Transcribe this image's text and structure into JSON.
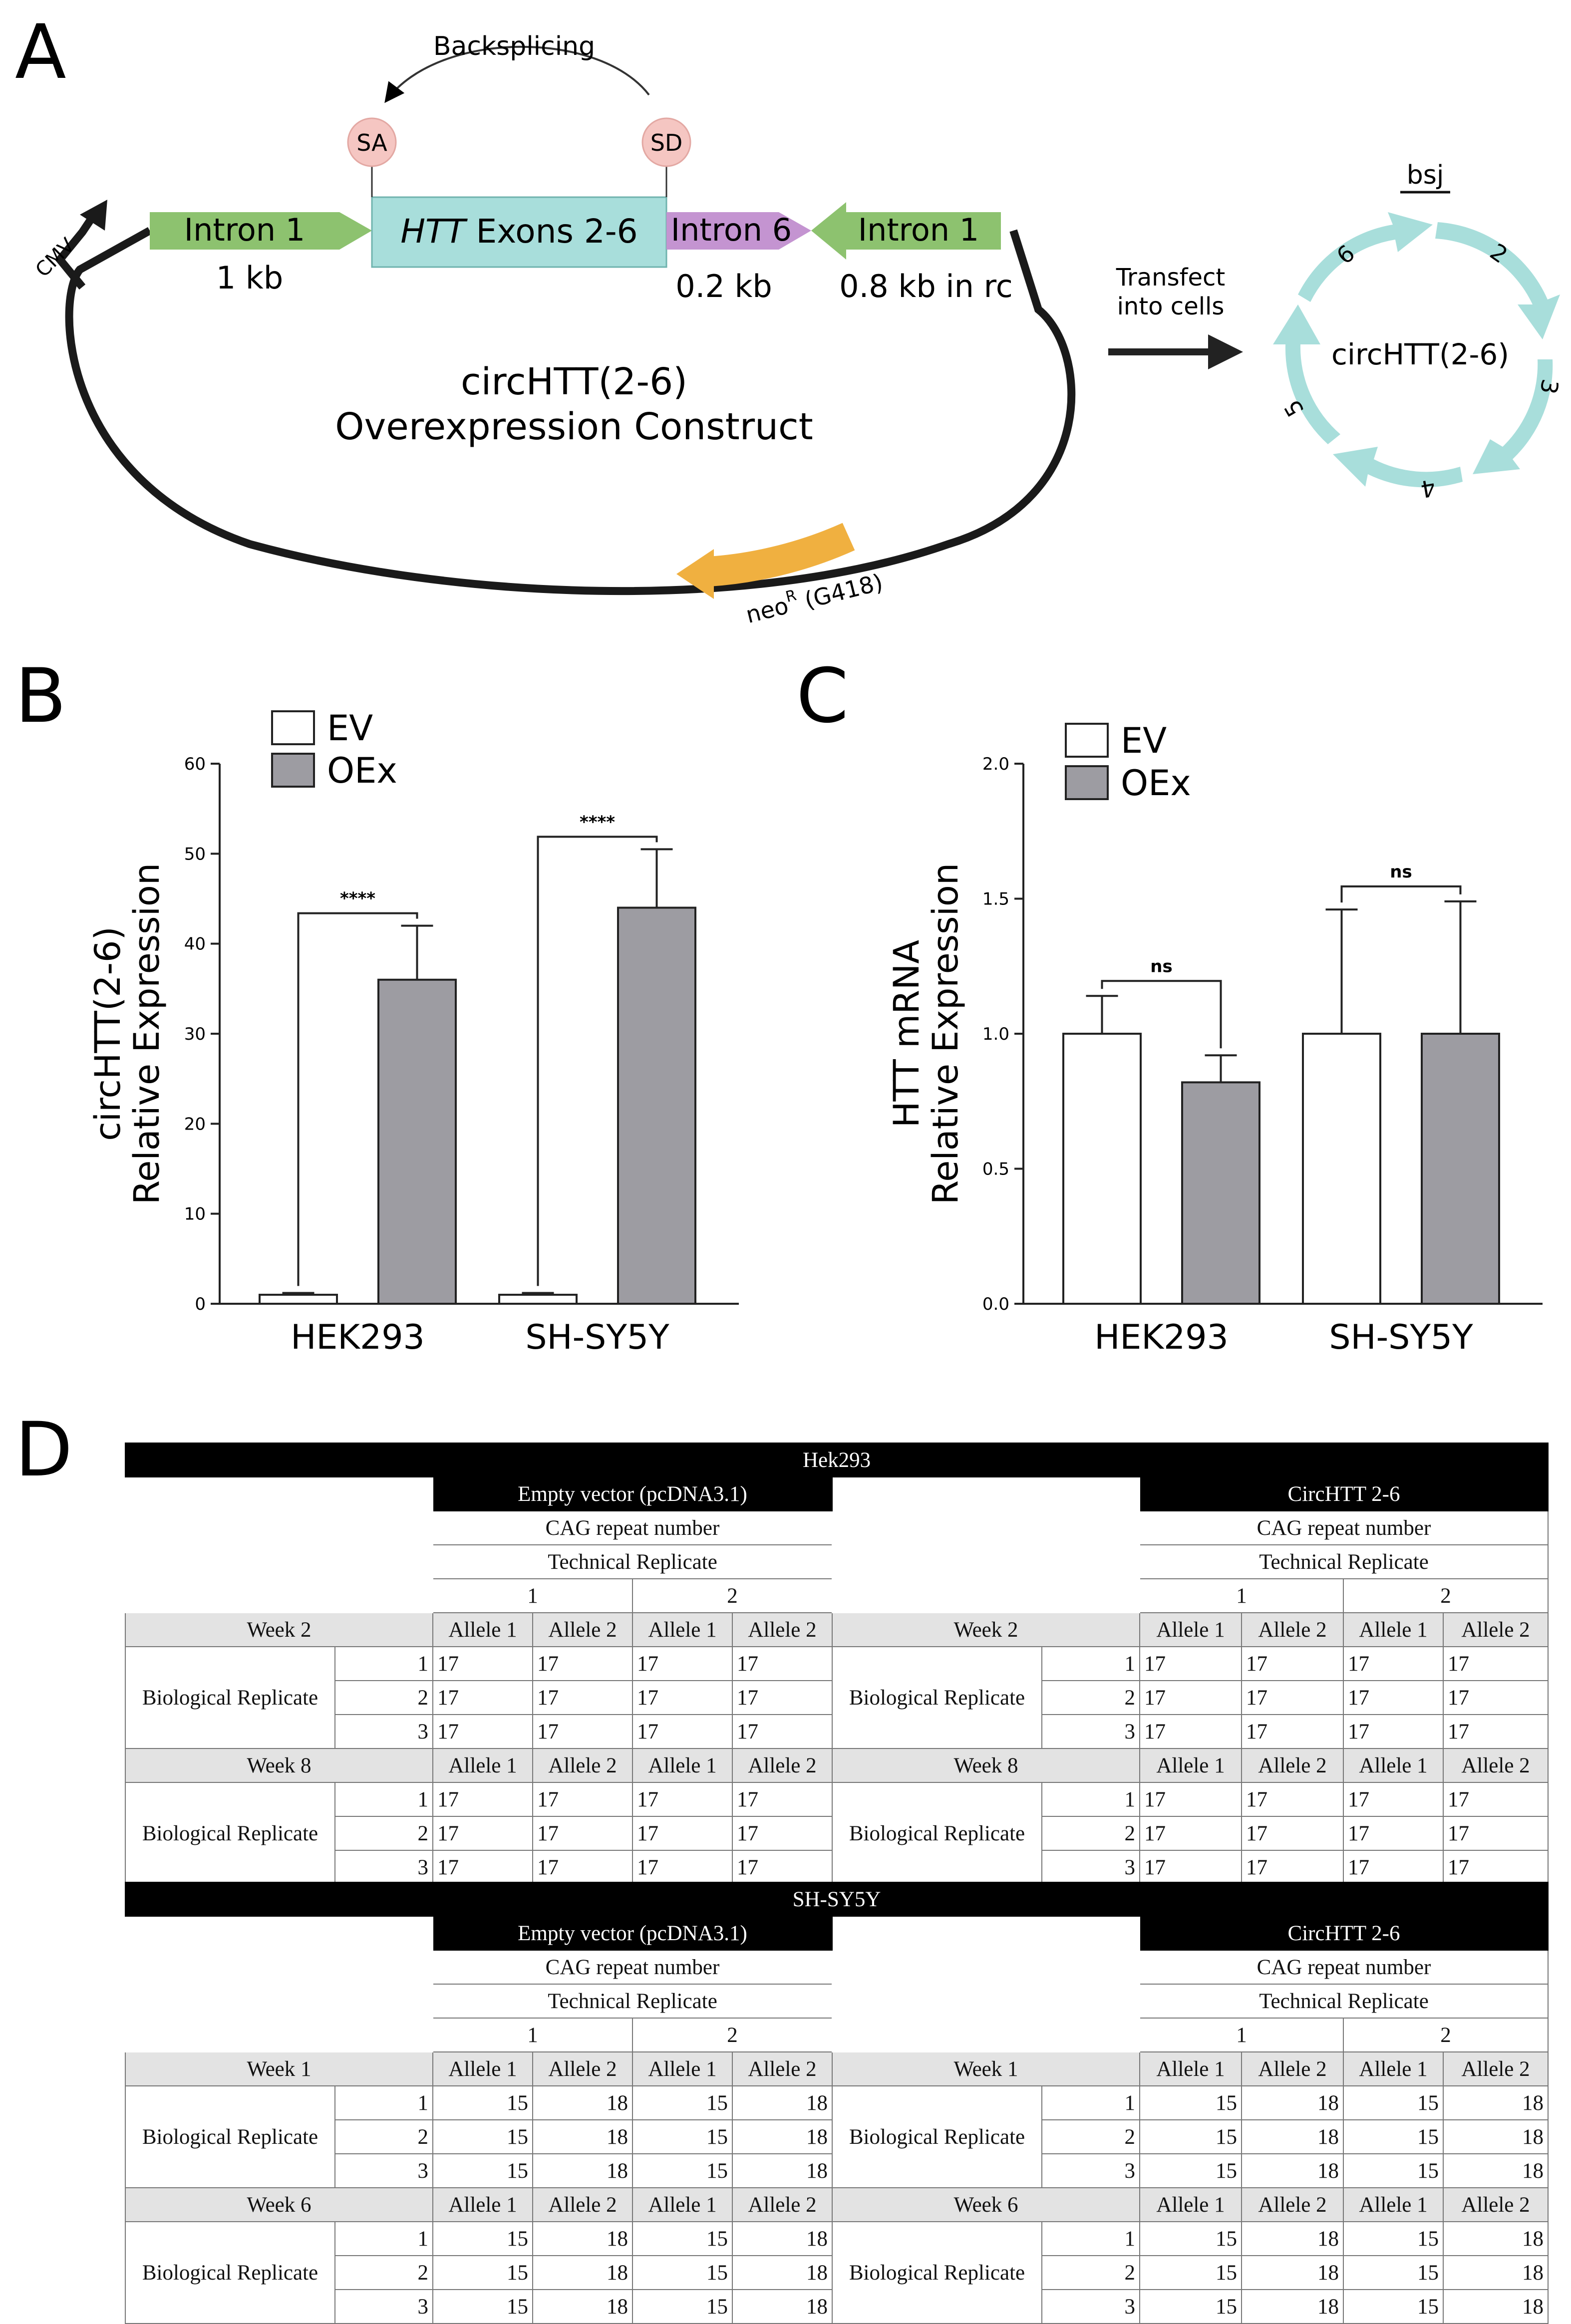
{
  "panel_letters": {
    "a": "A",
    "b": "B",
    "c": "C",
    "d": "D"
  },
  "panelA": {
    "backsplicing": "Backsplicing",
    "sa": "SA",
    "sd": "SD",
    "cmv": "CMV",
    "intron1_left": "Intron 1",
    "intron1_left_size": "1 kb",
    "exons_italic": "HTT",
    "exons_rest": " Exons 2-6",
    "intron6": "Intron 6",
    "intron6_size": "0.2 kb",
    "intron1_right": "Intron 1",
    "intron1_right_size": "0.8 kb in rc",
    "construct_line1": "circHTT(2-6)",
    "construct_line2": "Overexpression Construct",
    "neo_main": "neo",
    "neo_sup": "R",
    "neo_rest": " (G418)",
    "transfect_line1": "Transfect",
    "transfect_line2": "into cells",
    "circ_label": "circHTT(2-6)",
    "bsj": "bsj",
    "exon_numbers": [
      "2",
      "3",
      "4",
      "5",
      "6"
    ],
    "colors": {
      "intron1": "#8dc26f",
      "exons": "#a8dedb",
      "intron6": "#c494d1",
      "neo": "#f0b040",
      "circ": "#a8dedb",
      "splice": "#f5c6c2"
    }
  },
  "chart_data": [
    {
      "type": "bar",
      "panel": "B",
      "categories": [
        "HEK293",
        "SH-SY5Y"
      ],
      "series": [
        {
          "name": "EV",
          "values": [
            1,
            1
          ],
          "errors": [
            0.2,
            0.2
          ],
          "color": "#ffffff"
        },
        {
          "name": "OEx",
          "values": [
            36,
            44
          ],
          "errors": [
            6,
            6.5
          ],
          "color": "#9d9ca2"
        }
      ],
      "ylabel_line1": "circHTT(2-6)",
      "ylabel_line2": "Relative Expression",
      "ylim": [
        0,
        60
      ],
      "yticks": [
        "0",
        "10",
        "20",
        "30",
        "40",
        "50",
        "60"
      ],
      "significance": [
        "****",
        "****"
      ],
      "legend": "top-left"
    },
    {
      "type": "bar",
      "panel": "C",
      "categories": [
        "HEK293",
        "SH-SY5Y"
      ],
      "series": [
        {
          "name": "EV",
          "values": [
            1.0,
            1.0
          ],
          "errors": [
            0.14,
            0.46
          ],
          "color": "#ffffff"
        },
        {
          "name": "OEx",
          "values": [
            0.82,
            1.0
          ],
          "errors": [
            0.1,
            0.49
          ],
          "color": "#9d9ca2"
        }
      ],
      "ylabel_line1": "HTT mRNA",
      "ylabel_line2": "Relative Expression",
      "ylim": [
        0,
        2.0
      ],
      "yticks": [
        "0.0",
        "0.5",
        "1.0",
        "1.5",
        "2.0"
      ],
      "significance": [
        "ns",
        "ns"
      ],
      "legend": "top-left"
    }
  ],
  "panelD": {
    "hek": {
      "title": "Hek293",
      "ev": "Empty vector (pcDNA3.1)",
      "circ": "CircHTT 2-6",
      "cag": "CAG repeat number",
      "tech": "Technical Replicate",
      "t1": "1",
      "t2": "2",
      "week_a": "Week 2",
      "week_b": "Week 8",
      "allele1": "Allele 1",
      "allele2": "Allele 2",
      "bio": "Biological Replicate",
      "r1": "1",
      "r2": "2",
      "r3": "3",
      "v1": "17",
      "v2": "17"
    },
    "sh": {
      "title": "SH-SY5Y",
      "ev": "Empty vector (pcDNA3.1)",
      "circ": "CircHTT 2-6",
      "cag": "CAG repeat number",
      "tech": "Technical Replicate",
      "t1": "1",
      "t2": "2",
      "week_a": "Week 1",
      "week_b": "Week 6",
      "allele1": "Allele 1",
      "allele2": "Allele 2",
      "bio": "Biological Replicate",
      "r1": "1",
      "r2": "2",
      "r3": "3",
      "v1": "15",
      "v2": "18"
    }
  }
}
